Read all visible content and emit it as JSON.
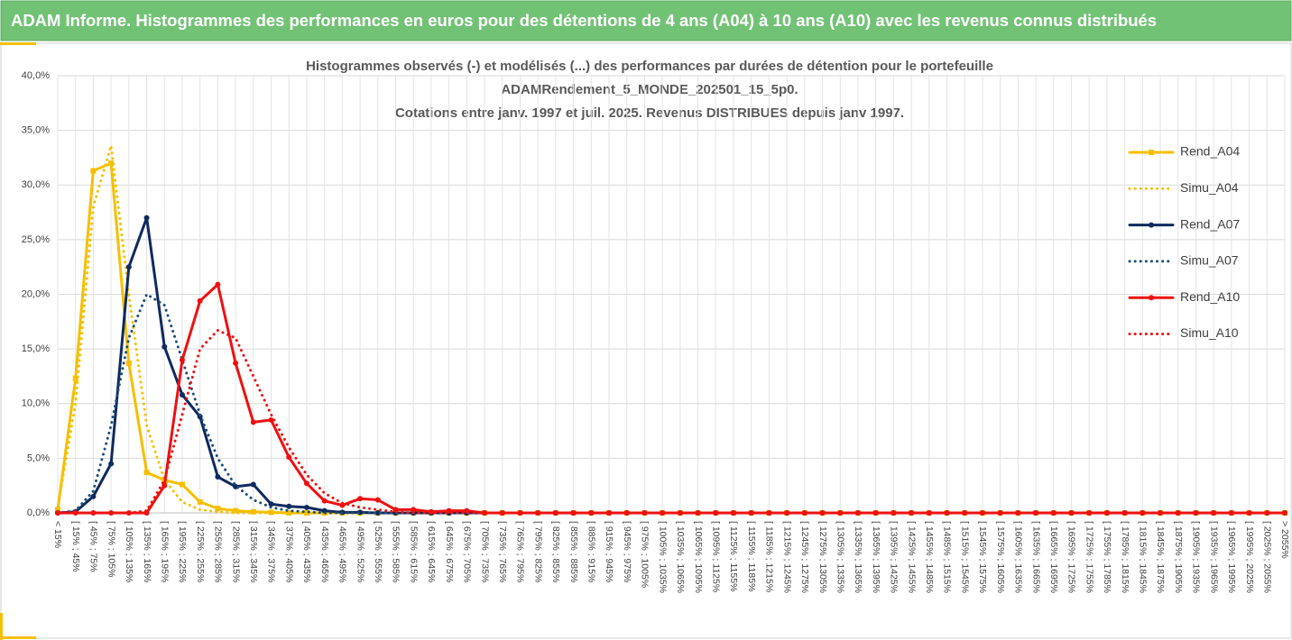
{
  "header": {
    "title": "ADAM Informe. Histogrammes des performances en euros pour des détentions de 4 ans (A04) à 10 ans (A10) avec les revenus connus distribués"
  },
  "chart_data": {
    "type": "line",
    "title": [
      "Histogrammes observés (-) et modélisés (...) des performances par durées de détention pour le portefeuille",
      "ADAMRendement_5_MONDE_202501_15_5p0.",
      "Cotations entre janv. 1997 et juil. 2025. Revenus DISTRIBUES depuis janv 1997."
    ],
    "categories": [
      "< 15%",
      "[ 15% ; 45%",
      "[ 45% ; 75%",
      "[ 75% ; 105%",
      "[ 105% ; 135%",
      "[ 135% ; 165%",
      "[ 165% ; 195%",
      "[ 195% ; 225%",
      "[ 225% ; 255%",
      "[ 255% ; 285%",
      "[ 285% ; 315%",
      "[ 315% ; 345%",
      "[ 345% ; 375%",
      "[ 375% ; 405%",
      "[ 405% ; 435%",
      "[ 435% ; 465%",
      "[ 465% ; 495%",
      "[ 495% ; 525%",
      "[ 525% ; 555%",
      "[ 555% ; 585%",
      "[ 585% ; 615%",
      "[ 615% ; 645%",
      "[ 645% ; 675%",
      "[ 675% ; 705%",
      "[ 705% ; 735%",
      "[ 735% ; 765%",
      "[ 765% ; 795%",
      "[ 795% ; 825%",
      "[ 825% ; 855%",
      "[ 855% ; 885%",
      "[ 885% ; 915%",
      "[ 915% ; 945%",
      "[ 945% ; 975%",
      "[ 975% ; 1005%",
      "[ 1005% ; 1035%",
      "[ 1035% ; 1065%",
      "[ 1065% ; 1095%",
      "[ 1095% ; 1125%",
      "[ 1125% ; 1155%",
      "[ 1155% ; 1185%",
      "[ 1185% ; 1215%",
      "[ 1215% ; 1245%",
      "[ 1245% ; 1275%",
      "[ 1275% ; 1305%",
      "[ 1305% ; 1335%",
      "[ 1335% ; 1365%",
      "[ 1365% ; 1395%",
      "[ 1395% ; 1425%",
      "[ 1425% ; 1455%",
      "[ 1455% ; 1485%",
      "[ 1485% ; 1515%",
      "[ 1515% ; 1545%",
      "[ 1545% ; 1575%",
      "[ 1575% ; 1605%",
      "[ 1605% ; 1635%",
      "[ 1635% ; 1665%",
      "[ 1665% ; 1695%",
      "[ 1695% ; 1725%",
      "[ 1725% ; 1755%",
      "[ 1755% ; 1785%",
      "[ 1785% ; 1815%",
      "[ 1815% ; 1845%",
      "[ 1845% ; 1875%",
      "[ 1875% ; 1905%",
      "[ 1905% ; 1935%",
      "[ 1935% ; 1965%",
      "[ 1965% ; 1995%",
      "[ 1995% ; 2025%",
      "[ 2025% ; 2055%",
      "> 2055%"
    ],
    "series": [
      {
        "name": "Rend_A04",
        "color": "#f5bf00",
        "dashed": false,
        "marker": "square",
        "values": [
          0.3,
          12.3,
          31.3,
          32,
          13.7,
          3.7,
          3,
          2.6,
          1,
          0.4,
          0.2,
          0.1,
          0.05,
          0,
          0,
          0,
          0,
          0,
          0,
          0,
          0,
          0,
          0,
          0,
          0,
          0,
          0,
          0,
          0,
          0,
          0,
          0,
          0,
          0,
          0,
          0,
          0,
          0,
          0,
          0,
          0,
          0,
          0,
          0,
          0,
          0,
          0,
          0,
          0,
          0,
          0,
          0,
          0,
          0,
          0,
          0,
          0,
          0,
          0,
          0,
          0,
          0,
          0,
          0,
          0,
          0,
          0,
          0,
          0,
          0
        ]
      },
      {
        "name": "Simu_A04",
        "color": "#f5bf00",
        "dashed": true,
        "values": [
          0.5,
          10,
          28,
          33.6,
          20,
          8,
          3,
          1,
          0.3,
          0.1,
          0,
          0,
          0,
          0,
          0,
          0,
          0,
          0,
          0,
          0,
          0,
          0,
          0,
          0,
          0,
          0,
          0,
          0,
          0,
          0,
          0,
          0,
          0,
          0,
          0,
          0,
          0,
          0,
          0,
          0,
          0,
          0,
          0,
          0,
          0,
          0,
          0,
          0,
          0,
          0,
          0,
          0,
          0,
          0,
          0,
          0,
          0,
          0,
          0,
          0,
          0,
          0,
          0,
          0,
          0,
          0,
          0,
          0,
          0,
          0
        ]
      },
      {
        "name": "Rend_A07",
        "color": "#0e2a5e",
        "dashed": false,
        "marker": "circle",
        "values": [
          0,
          0.1,
          1.5,
          4.5,
          22.5,
          27,
          15.2,
          10.8,
          8.8,
          3.3,
          2.4,
          2.6,
          0.8,
          0.6,
          0.5,
          0.2,
          0.05,
          0.05,
          0,
          0,
          0,
          0,
          0,
          0,
          0,
          0,
          0,
          0,
          0,
          0,
          0,
          0,
          0,
          0,
          0,
          0,
          0,
          0,
          0,
          0,
          0,
          0,
          0,
          0,
          0,
          0,
          0,
          0,
          0,
          0,
          0,
          0,
          0,
          0,
          0,
          0,
          0,
          0,
          0,
          0,
          0,
          0,
          0,
          0,
          0,
          0,
          0,
          0,
          0,
          0
        ]
      },
      {
        "name": "Simu_A07",
        "color": "#1f4e79",
        "dashed": true,
        "values": [
          0,
          0.2,
          2,
          8,
          16,
          20,
          19,
          14,
          9,
          5,
          2.5,
          1.2,
          0.5,
          0.2,
          0.1,
          0,
          0,
          0,
          0,
          0,
          0,
          0,
          0,
          0,
          0,
          0,
          0,
          0,
          0,
          0,
          0,
          0,
          0,
          0,
          0,
          0,
          0,
          0,
          0,
          0,
          0,
          0,
          0,
          0,
          0,
          0,
          0,
          0,
          0,
          0,
          0,
          0,
          0,
          0,
          0,
          0,
          0,
          0,
          0,
          0,
          0,
          0,
          0,
          0,
          0,
          0,
          0,
          0,
          0,
          0
        ]
      },
      {
        "name": "Rend_A10",
        "color": "#ee1111",
        "dashed": false,
        "marker": "circle",
        "values": [
          0,
          0,
          0,
          0,
          0,
          0,
          2.5,
          14,
          19.4,
          20.9,
          13.7,
          8.3,
          8.5,
          5.1,
          2.7,
          1.1,
          0.7,
          1.3,
          1.2,
          0.3,
          0.3,
          0.1,
          0.2,
          0.2,
          0,
          0,
          0,
          0,
          0,
          0,
          0,
          0,
          0,
          0,
          0,
          0,
          0,
          0,
          0,
          0,
          0,
          0,
          0,
          0,
          0,
          0,
          0,
          0,
          0,
          0,
          0,
          0,
          0,
          0,
          0,
          0,
          0,
          0,
          0,
          0,
          0,
          0,
          0,
          0,
          0,
          0,
          0,
          0,
          0,
          0
        ]
      },
      {
        "name": "Simu_A10",
        "color": "#ee1111",
        "dashed": true,
        "values": [
          0,
          0,
          0,
          0,
          0,
          0.2,
          3,
          9,
          15,
          16.7,
          16,
          12.5,
          9,
          6,
          3.5,
          1.8,
          0.9,
          0.5,
          0.3,
          0.1,
          0,
          0,
          0,
          0,
          0,
          0,
          0,
          0,
          0,
          0,
          0,
          0,
          0,
          0,
          0,
          0,
          0,
          0,
          0,
          0,
          0,
          0,
          0,
          0,
          0,
          0,
          0,
          0,
          0,
          0,
          0,
          0,
          0,
          0,
          0,
          0,
          0,
          0,
          0,
          0,
          0,
          0,
          0,
          0,
          0,
          0,
          0,
          0,
          0,
          0
        ]
      }
    ],
    "ylim": [
      0,
      40
    ],
    "yticks": [
      {
        "value": 0,
        "label": "0,0%"
      },
      {
        "value": 5,
        "label": "5,0%"
      },
      {
        "value": 10,
        "label": "10,0%"
      },
      {
        "value": 15,
        "label": "15,0%"
      },
      {
        "value": 20,
        "label": "20,0%"
      },
      {
        "value": 25,
        "label": "25,0%"
      },
      {
        "value": 30,
        "label": "30,0%"
      },
      {
        "value": 35,
        "label": "35,0%"
      },
      {
        "value": 40,
        "label": "40,0%"
      }
    ],
    "grid": true,
    "legend": "right"
  }
}
